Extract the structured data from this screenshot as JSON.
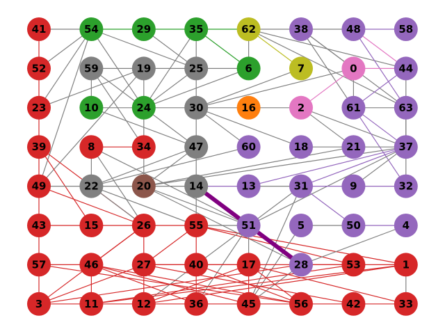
{
  "colors": {
    "red": "#d62728",
    "green": "#2ca02c",
    "gray": "#808080",
    "olive": "#bcbd22",
    "purple": "#9467bd",
    "pink": "#e377c2",
    "orange": "#ff7f0e",
    "brown": "#8c564b",
    "highlight": "#800080"
  },
  "nodes": [
    {
      "id": "41",
      "row": 0,
      "col": 0,
      "color": "red"
    },
    {
      "id": "54",
      "row": 0,
      "col": 1,
      "color": "green"
    },
    {
      "id": "29",
      "row": 0,
      "col": 2,
      "color": "green"
    },
    {
      "id": "35",
      "row": 0,
      "col": 3,
      "color": "green"
    },
    {
      "id": "62",
      "row": 0,
      "col": 4,
      "color": "olive"
    },
    {
      "id": "38",
      "row": 0,
      "col": 5,
      "color": "purple"
    },
    {
      "id": "48",
      "row": 0,
      "col": 6,
      "color": "purple"
    },
    {
      "id": "58",
      "row": 0,
      "col": 7,
      "color": "purple"
    },
    {
      "id": "52",
      "row": 1,
      "col": 0,
      "color": "red"
    },
    {
      "id": "59",
      "row": 1,
      "col": 1,
      "color": "gray"
    },
    {
      "id": "19",
      "row": 1,
      "col": 2,
      "color": "gray"
    },
    {
      "id": "25",
      "row": 1,
      "col": 3,
      "color": "gray"
    },
    {
      "id": "6",
      "row": 1,
      "col": 4,
      "color": "green"
    },
    {
      "id": "7",
      "row": 1,
      "col": 5,
      "color": "olive"
    },
    {
      "id": "0",
      "row": 1,
      "col": 6,
      "color": "pink"
    },
    {
      "id": "44",
      "row": 1,
      "col": 7,
      "color": "purple"
    },
    {
      "id": "23",
      "row": 2,
      "col": 0,
      "color": "red"
    },
    {
      "id": "10",
      "row": 2,
      "col": 1,
      "color": "green"
    },
    {
      "id": "24",
      "row": 2,
      "col": 2,
      "color": "green"
    },
    {
      "id": "30",
      "row": 2,
      "col": 3,
      "color": "gray"
    },
    {
      "id": "16",
      "row": 2,
      "col": 4,
      "color": "orange"
    },
    {
      "id": "2",
      "row": 2,
      "col": 5,
      "color": "pink"
    },
    {
      "id": "61",
      "row": 2,
      "col": 6,
      "color": "purple"
    },
    {
      "id": "63",
      "row": 2,
      "col": 7,
      "color": "purple"
    },
    {
      "id": "39",
      "row": 3,
      "col": 0,
      "color": "red"
    },
    {
      "id": "8",
      "row": 3,
      "col": 1,
      "color": "red"
    },
    {
      "id": "34",
      "row": 3,
      "col": 2,
      "color": "red"
    },
    {
      "id": "47",
      "row": 3,
      "col": 3,
      "color": "gray"
    },
    {
      "id": "60",
      "row": 3,
      "col": 4,
      "color": "purple"
    },
    {
      "id": "18",
      "row": 3,
      "col": 5,
      "color": "purple"
    },
    {
      "id": "21",
      "row": 3,
      "col": 6,
      "color": "purple"
    },
    {
      "id": "37",
      "row": 3,
      "col": 7,
      "color": "purple"
    },
    {
      "id": "49",
      "row": 4,
      "col": 0,
      "color": "red"
    },
    {
      "id": "22",
      "row": 4,
      "col": 1,
      "color": "gray"
    },
    {
      "id": "20",
      "row": 4,
      "col": 2,
      "color": "brown"
    },
    {
      "id": "14",
      "row": 4,
      "col": 3,
      "color": "gray"
    },
    {
      "id": "13",
      "row": 4,
      "col": 4,
      "color": "purple"
    },
    {
      "id": "31",
      "row": 4,
      "col": 5,
      "color": "purple"
    },
    {
      "id": "9",
      "row": 4,
      "col": 6,
      "color": "purple"
    },
    {
      "id": "32",
      "row": 4,
      "col": 7,
      "color": "purple"
    },
    {
      "id": "43",
      "row": 5,
      "col": 0,
      "color": "red"
    },
    {
      "id": "15",
      "row": 5,
      "col": 1,
      "color": "red"
    },
    {
      "id": "26",
      "row": 5,
      "col": 2,
      "color": "red"
    },
    {
      "id": "55",
      "row": 5,
      "col": 3,
      "color": "red"
    },
    {
      "id": "51",
      "row": 5,
      "col": 4,
      "color": "purple"
    },
    {
      "id": "5",
      "row": 5,
      "col": 5,
      "color": "purple"
    },
    {
      "id": "50",
      "row": 5,
      "col": 6,
      "color": "purple"
    },
    {
      "id": "4",
      "row": 5,
      "col": 7,
      "color": "purple"
    },
    {
      "id": "57",
      "row": 6,
      "col": 0,
      "color": "red"
    },
    {
      "id": "46",
      "row": 6,
      "col": 1,
      "color": "red"
    },
    {
      "id": "27",
      "row": 6,
      "col": 2,
      "color": "red"
    },
    {
      "id": "40",
      "row": 6,
      "col": 3,
      "color": "red"
    },
    {
      "id": "17",
      "row": 6,
      "col": 4,
      "color": "red"
    },
    {
      "id": "28",
      "row": 6,
      "col": 5,
      "color": "purple"
    },
    {
      "id": "53",
      "row": 6,
      "col": 6,
      "color": "red"
    },
    {
      "id": "1",
      "row": 6,
      "col": 7,
      "color": "red"
    },
    {
      "id": "3",
      "row": 7,
      "col": 0,
      "color": "red"
    },
    {
      "id": "11",
      "row": 7,
      "col": 1,
      "color": "red"
    },
    {
      "id": "12",
      "row": 7,
      "col": 2,
      "color": "red"
    },
    {
      "id": "36",
      "row": 7,
      "col": 3,
      "color": "red"
    },
    {
      "id": "45",
      "row": 7,
      "col": 4,
      "color": "red"
    },
    {
      "id": "56",
      "row": 7,
      "col": 5,
      "color": "red"
    },
    {
      "id": "42",
      "row": 7,
      "col": 6,
      "color": "red"
    },
    {
      "id": "33",
      "row": 7,
      "col": 7,
      "color": "red"
    }
  ],
  "edges": [
    [
      "41",
      "54",
      "gray"
    ],
    [
      "54",
      "29",
      "green"
    ],
    [
      "29",
      "35",
      "green"
    ],
    [
      "35",
      "62",
      "green"
    ],
    [
      "62",
      "38",
      "gray"
    ],
    [
      "38",
      "48",
      "gray"
    ],
    [
      "48",
      "58",
      "purple"
    ],
    [
      "54",
      "52",
      "gray"
    ],
    [
      "54",
      "23",
      "gray"
    ],
    [
      "54",
      "49",
      "gray"
    ],
    [
      "54",
      "25",
      "gray"
    ],
    [
      "54",
      "24",
      "gray"
    ],
    [
      "29",
      "25",
      "gray"
    ],
    [
      "35",
      "25",
      "gray"
    ],
    [
      "35",
      "24",
      "gray"
    ],
    [
      "35",
      "6",
      "green"
    ],
    [
      "62",
      "6",
      "gray"
    ],
    [
      "62",
      "7",
      "olive"
    ],
    [
      "62",
      "44",
      "gray"
    ],
    [
      "62",
      "63",
      "gray"
    ],
    [
      "38",
      "61",
      "gray"
    ],
    [
      "38",
      "0",
      "gray"
    ],
    [
      "38",
      "63",
      "gray"
    ],
    [
      "48",
      "44",
      "pink"
    ],
    [
      "48",
      "63",
      "purple"
    ],
    [
      "41",
      "52",
      "red"
    ],
    [
      "52",
      "23",
      "red"
    ],
    [
      "59",
      "19",
      "gray"
    ],
    [
      "59",
      "10",
      "gray"
    ],
    [
      "59",
      "34",
      "gray"
    ],
    [
      "59",
      "47",
      "gray"
    ],
    [
      "19",
      "25",
      "gray"
    ],
    [
      "19",
      "23",
      "gray"
    ],
    [
      "19",
      "24",
      "gray"
    ],
    [
      "19",
      "49",
      "gray"
    ],
    [
      "25",
      "6",
      "gray"
    ],
    [
      "25",
      "24",
      "gray"
    ],
    [
      "25",
      "30",
      "gray"
    ],
    [
      "6",
      "24",
      "gray"
    ],
    [
      "0",
      "44",
      "pink"
    ],
    [
      "0",
      "30",
      "gray"
    ],
    [
      "0",
      "2",
      "pink"
    ],
    [
      "0",
      "61",
      "gray"
    ],
    [
      "10",
      "24",
      "gray"
    ],
    [
      "10",
      "47",
      "gray"
    ],
    [
      "24",
      "30",
      "gray"
    ],
    [
      "24",
      "34",
      "gray"
    ],
    [
      "30",
      "16",
      "gray"
    ],
    [
      "30",
      "47",
      "gray"
    ],
    [
      "30",
      "18",
      "gray"
    ],
    [
      "30",
      "60",
      "gray"
    ],
    [
      "30",
      "7",
      "gray"
    ],
    [
      "16",
      "2",
      "gray"
    ],
    [
      "2",
      "21",
      "gray"
    ],
    [
      "2",
      "37",
      "gray"
    ],
    [
      "61",
      "44",
      "purple"
    ],
    [
      "61",
      "63",
      "gray"
    ],
    [
      "61",
      "37",
      "purple"
    ],
    [
      "61",
      "32",
      "purple"
    ],
    [
      "44",
      "37",
      "gray"
    ],
    [
      "63",
      "37",
      "gray"
    ],
    [
      "23",
      "39",
      "red"
    ],
    [
      "39",
      "49",
      "red"
    ],
    [
      "39",
      "15",
      "red"
    ],
    [
      "39",
      "26",
      "red"
    ],
    [
      "8",
      "22",
      "gray"
    ],
    [
      "8",
      "34",
      "red"
    ],
    [
      "8",
      "26",
      "gray"
    ],
    [
      "8",
      "51",
      "gray"
    ],
    [
      "34",
      "20",
      "gray"
    ],
    [
      "47",
      "22",
      "gray"
    ],
    [
      "47",
      "14",
      "gray"
    ],
    [
      "47",
      "20",
      "gray"
    ],
    [
      "60",
      "22",
      "gray"
    ],
    [
      "18",
      "21",
      "gray"
    ],
    [
      "21",
      "37",
      "gray"
    ],
    [
      "21",
      "20",
      "gray"
    ],
    [
      "37",
      "32",
      "gray"
    ],
    [
      "37",
      "13",
      "purple"
    ],
    [
      "37",
      "31",
      "purple"
    ],
    [
      "37",
      "9",
      "gray"
    ],
    [
      "37",
      "20",
      "gray"
    ],
    [
      "37",
      "51",
      "gray"
    ],
    [
      "49",
      "22",
      "gray"
    ],
    [
      "49",
      "43",
      "red"
    ],
    [
      "49",
      "26",
      "red"
    ],
    [
      "22",
      "20",
      "gray"
    ],
    [
      "22",
      "55",
      "gray"
    ],
    [
      "22",
      "26",
      "gray"
    ],
    [
      "20",
      "14",
      "gray"
    ],
    [
      "20",
      "51",
      "gray"
    ],
    [
      "20",
      "28",
      "gray"
    ],
    [
      "14",
      "13",
      "purple"
    ],
    [
      "14",
      "55",
      "gray"
    ],
    [
      "13",
      "31",
      "gray"
    ],
    [
      "31",
      "9",
      "purple"
    ],
    [
      "31",
      "51",
      "gray"
    ],
    [
      "31",
      "50",
      "purple"
    ],
    [
      "31",
      "45",
      "gray"
    ],
    [
      "9",
      "32",
      "purple"
    ],
    [
      "43",
      "15",
      "red"
    ],
    [
      "43",
      "57",
      "red"
    ],
    [
      "15",
      "26",
      "red"
    ],
    [
      "26",
      "55",
      "red"
    ],
    [
      "26",
      "46",
      "red"
    ],
    [
      "26",
      "27",
      "red"
    ],
    [
      "26",
      "3",
      "red"
    ],
    [
      "55",
      "51",
      "gray"
    ],
    [
      "55",
      "40",
      "red"
    ],
    [
      "55",
      "27",
      "red"
    ],
    [
      "55",
      "53",
      "red"
    ],
    [
      "55",
      "1",
      "red"
    ],
    [
      "51",
      "17",
      "gray"
    ],
    [
      "51",
      "12",
      "gray"
    ],
    [
      "51",
      "36",
      "gray"
    ],
    [
      "5",
      "50",
      "gray"
    ],
    [
      "5",
      "45",
      "gray"
    ],
    [
      "50",
      "4",
      "purple"
    ],
    [
      "4",
      "28",
      "gray"
    ],
    [
      "28",
      "45",
      "gray"
    ],
    [
      "57",
      "46",
      "red"
    ],
    [
      "57",
      "56",
      "red"
    ],
    [
      "57",
      "3",
      "red"
    ],
    [
      "46",
      "11",
      "red"
    ],
    [
      "46",
      "36",
      "red"
    ],
    [
      "46",
      "56",
      "red"
    ],
    [
      "46",
      "45",
      "red"
    ],
    [
      "27",
      "40",
      "red"
    ],
    [
      "27",
      "17",
      "red"
    ],
    [
      "27",
      "42",
      "red"
    ],
    [
      "27",
      "12",
      "red"
    ],
    [
      "27",
      "3",
      "red"
    ],
    [
      "40",
      "17",
      "red"
    ],
    [
      "40",
      "56",
      "red"
    ],
    [
      "40",
      "36",
      "red"
    ],
    [
      "17",
      "53",
      "red"
    ],
    [
      "17",
      "45",
      "red"
    ],
    [
      "17",
      "56",
      "red"
    ],
    [
      "17",
      "33",
      "red"
    ],
    [
      "17",
      "12",
      "red"
    ],
    [
      "28",
      "53",
      "red"
    ],
    [
      "28",
      "3",
      "red"
    ],
    [
      "53",
      "1",
      "red"
    ],
    [
      "53",
      "11",
      "red"
    ],
    [
      "1",
      "11",
      "red"
    ],
    [
      "1",
      "12",
      "red"
    ],
    [
      "1",
      "33",
      "gray"
    ],
    [
      "3",
      "11",
      "red"
    ],
    [
      "11",
      "12",
      "red"
    ],
    [
      "12",
      "36",
      "red"
    ],
    [
      "36",
      "45",
      "red"
    ],
    [
      "45",
      "56",
      "red"
    ],
    [
      "56",
      "42",
      "red"
    ],
    [
      "42",
      "33",
      "red"
    ]
  ],
  "highlight_edges": [
    [
      "14",
      "51"
    ],
    [
      "51",
      "28"
    ]
  ]
}
